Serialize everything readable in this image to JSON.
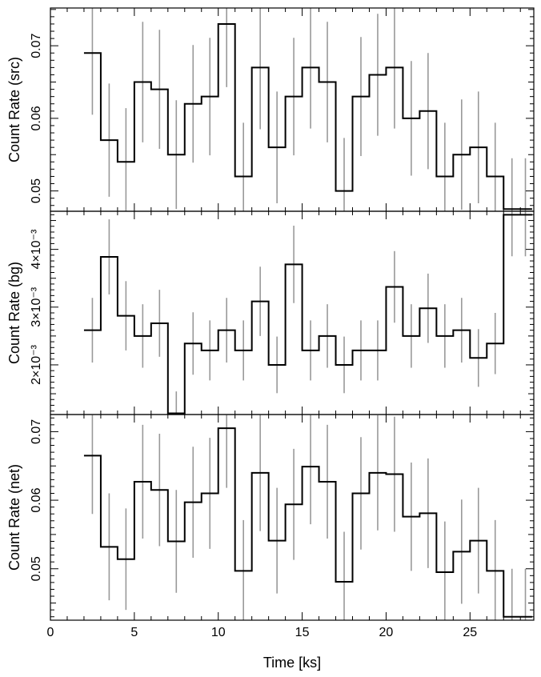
{
  "chart_data": [
    {
      "type": "line",
      "step": true,
      "xlabel": "",
      "ylabel": "Count Rate (src)",
      "xlim": [
        0,
        28.8
      ],
      "ylim": [
        0.0472,
        0.0752
      ],
      "yticks": [
        0.05,
        0.06,
        0.07
      ],
      "ytick_labels": [
        "0.05",
        "0.06",
        "0.07"
      ],
      "colors": {
        "line": "#000000",
        "errorbar": "#999999"
      },
      "x": [
        2.5,
        3.5,
        4.5,
        5.5,
        6.5,
        7.5,
        8.5,
        9.5,
        10.5,
        11.5,
        12.5,
        13.5,
        14.5,
        15.5,
        16.5,
        17.5,
        18.5,
        19.5,
        20.5,
        21.5,
        22.5,
        23.5,
        24.5,
        25.5,
        26.5,
        27.5,
        28.3
      ],
      "y": [
        0.069,
        0.057,
        0.054,
        0.065,
        0.064,
        0.055,
        0.062,
        0.063,
        0.073,
        0.052,
        0.067,
        0.056,
        0.063,
        0.067,
        0.065,
        0.05,
        0.063,
        0.066,
        0.067,
        0.06,
        0.061,
        0.052,
        0.055,
        0.056,
        0.052,
        0.0475,
        0.0475
      ],
      "err": [
        0.0085,
        0.0078,
        0.0074,
        0.0083,
        0.0082,
        0.0075,
        0.0081,
        0.0081,
        0.0087,
        0.0074,
        0.0085,
        0.0077,
        0.0081,
        0.0084,
        0.0083,
        0.0073,
        0.0082,
        0.0084,
        0.0084,
        0.0079,
        0.008,
        0.0074,
        0.0076,
        0.0077,
        0.0074,
        0.007,
        0.007
      ]
    },
    {
      "type": "line",
      "step": true,
      "xlabel": "",
      "ylabel": "Count Rate (bg)",
      "xlim": [
        0,
        28.8
      ],
      "ylim": [
        0.00114,
        0.00466
      ],
      "yticks": [
        0.002,
        0.003,
        0.004
      ],
      "ytick_labels": [
        "2×10⁻³",
        "3×10⁻³",
        "4×10⁻³"
      ],
      "colors": {
        "line": "#000000",
        "errorbar": "#999999"
      },
      "x": [
        2.5,
        3.5,
        4.5,
        5.5,
        6.5,
        7.5,
        8.5,
        9.5,
        10.5,
        11.5,
        12.5,
        13.5,
        14.5,
        15.5,
        16.5,
        17.5,
        18.5,
        19.5,
        20.5,
        21.5,
        22.5,
        23.5,
        24.5,
        25.5,
        26.5,
        27.5,
        28.3
      ],
      "y": [
        0.0026,
        0.00387,
        0.00285,
        0.0025,
        0.00272,
        0.00116,
        0.00237,
        0.00225,
        0.0026,
        0.00225,
        0.0031,
        0.002,
        0.00374,
        0.00225,
        0.0025,
        0.002,
        0.00225,
        0.00225,
        0.00335,
        0.0025,
        0.00298,
        0.0025,
        0.0026,
        0.00212,
        0.00237,
        0.0046,
        0.0046
      ],
      "err": [
        0.00056,
        0.00065,
        0.0006,
        0.00055,
        0.00058,
        0.00038,
        0.00054,
        0.00052,
        0.00056,
        0.00052,
        0.0006,
        0.00049,
        0.00067,
        0.00052,
        0.00055,
        0.00049,
        0.00052,
        0.00052,
        0.00062,
        0.00055,
        0.0006,
        0.00055,
        0.00056,
        0.0005,
        0.00053,
        0.00072,
        0.00072
      ]
    },
    {
      "type": "line",
      "step": true,
      "xlabel": "Time [ks]",
      "ylabel": "Count Rate (net)",
      "xlim": [
        0,
        28.8
      ],
      "ylim": [
        0.0425,
        0.0725
      ],
      "xticks": [
        0,
        5,
        10,
        15,
        20,
        25
      ],
      "xtick_labels": [
        "0",
        "5",
        "10",
        "15",
        "20",
        "25"
      ],
      "yticks": [
        0.05,
        0.06,
        0.07
      ],
      "ytick_labels": [
        "0.05",
        "0.06",
        "0.07"
      ],
      "colors": {
        "line": "#000000",
        "errorbar": "#999999"
      },
      "x": [
        2.5,
        3.5,
        4.5,
        5.5,
        6.5,
        7.5,
        8.5,
        9.5,
        10.5,
        11.5,
        12.5,
        13.5,
        14.5,
        15.5,
        16.5,
        17.5,
        18.5,
        19.5,
        20.5,
        21.5,
        22.5,
        23.5,
        24.5,
        25.5,
        26.5,
        27.5,
        28.3
      ],
      "y": [
        0.0665,
        0.0532,
        0.0514,
        0.0627,
        0.0615,
        0.054,
        0.0597,
        0.061,
        0.0705,
        0.0497,
        0.064,
        0.0541,
        0.0594,
        0.0649,
        0.0627,
        0.0481,
        0.061,
        0.064,
        0.0638,
        0.0576,
        0.0581,
        0.0495,
        0.0525,
        0.0541,
        0.0497,
        0.043,
        0.043
      ],
      "err": [
        0.0085,
        0.0078,
        0.0074,
        0.0083,
        0.0082,
        0.0075,
        0.0081,
        0.0081,
        0.0087,
        0.0074,
        0.0085,
        0.0077,
        0.0081,
        0.0084,
        0.0083,
        0.0073,
        0.0082,
        0.0084,
        0.0084,
        0.0079,
        0.008,
        0.0074,
        0.0076,
        0.0077,
        0.0074,
        0.007,
        0.007
      ]
    }
  ]
}
